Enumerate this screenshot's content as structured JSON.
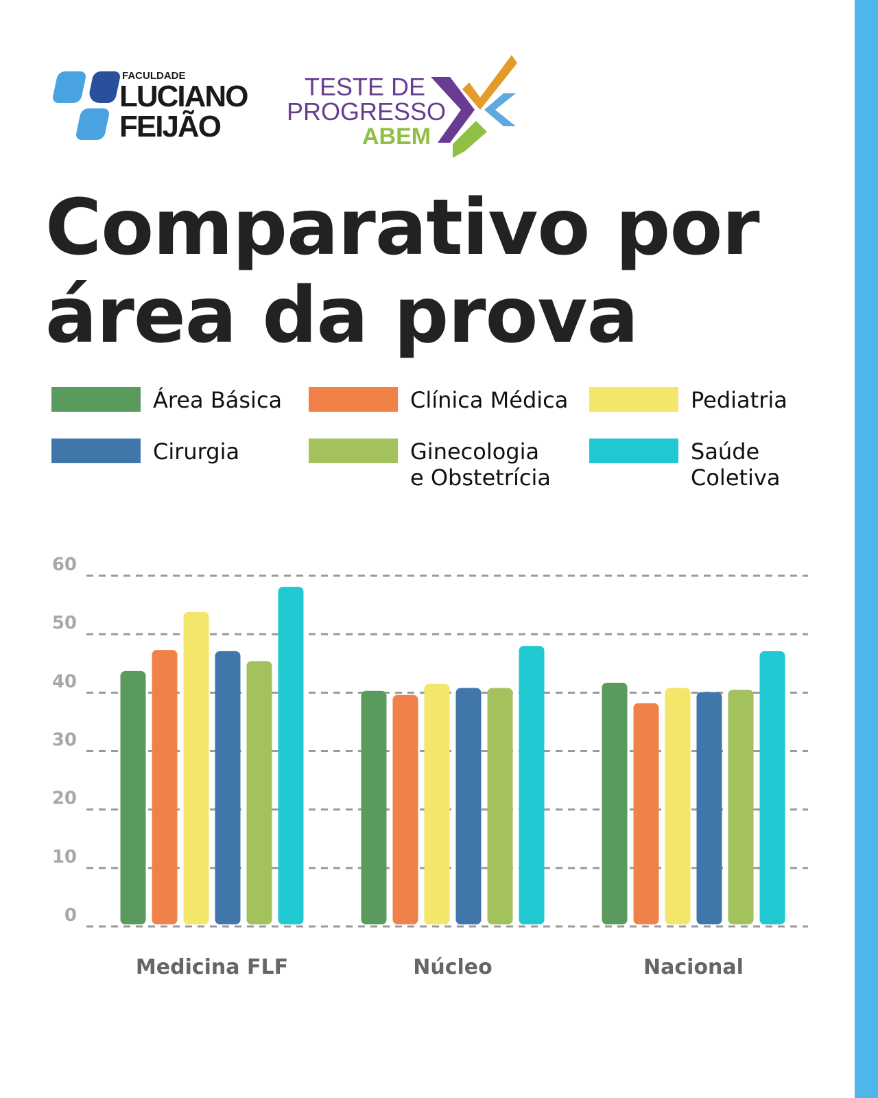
{
  "logos": {
    "faculdade": {
      "line1": "FACULDADE",
      "line2": "LUCIANO",
      "line3": "FEIJÃO"
    },
    "teste": {
      "line1": "TESTE DE",
      "line2": "PROGRESSO",
      "line3": "ABEM"
    }
  },
  "title": {
    "line1": "Comparativo por",
    "line2": "área da prova"
  },
  "chart_data": {
    "type": "bar",
    "title": "Comparativo por área da prova",
    "categories": [
      "Medicina FLF",
      "Núcleo",
      "Nacional"
    ],
    "series": [
      {
        "name": "Área Básica",
        "color": "#5b9a5d",
        "values": [
          43.7,
          40.3,
          41.7
        ]
      },
      {
        "name": "Clínica Médica",
        "color": "#f08148",
        "values": [
          47.3,
          39.6,
          38.2
        ]
      },
      {
        "name": "Pediatria",
        "color": "#f3e66a",
        "values": [
          53.8,
          41.5,
          40.8
        ]
      },
      {
        "name": "Cirurgia",
        "color": "#4176ab",
        "values": [
          47.1,
          40.8,
          40.1
        ]
      },
      {
        "name": "Ginecologia e Obstetrícia",
        "color": "#a3c15c",
        "values": [
          45.4,
          40.8,
          40.5
        ]
      },
      {
        "name": "Saúde Coletiva",
        "color": "#20c8d2",
        "values": [
          58.1,
          48.0,
          47.1
        ]
      }
    ],
    "legend_labels": [
      [
        "Área Básica"
      ],
      [
        "Clínica Médica"
      ],
      [
        "Pediatria"
      ],
      [
        "Cirurgia"
      ],
      [
        "Ginecologia",
        "e Obstetrícia"
      ],
      [
        "Saúde",
        "Coletiva"
      ]
    ],
    "yticks": [
      "0",
      "10",
      "20",
      "30",
      "40",
      "50",
      "60"
    ],
    "ylim": [
      0,
      60
    ],
    "grid": true,
    "legend_position": "top",
    "xlabel": "",
    "ylabel": ""
  }
}
